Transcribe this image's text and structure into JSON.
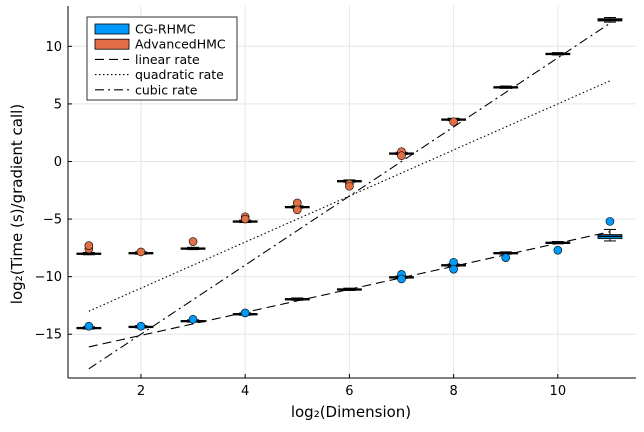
{
  "chart_data": {
    "type": "box",
    "xlabel": "log₂(Dimension)",
    "ylabel": "log₂(Time (s)/gradient call)",
    "xlim": [
      0.6,
      11.5
    ],
    "ylim": [
      -18.8,
      13.5
    ],
    "xticks": [
      2,
      4,
      6,
      8,
      10
    ],
    "yticks": [
      -15,
      -10,
      -5,
      0,
      5,
      10
    ],
    "grid": true,
    "legend_position": "top-left",
    "series": [
      {
        "name": "CG-RHMC",
        "color": "#009AFA",
        "x": [
          1,
          2,
          3,
          4,
          5,
          6,
          7,
          8,
          9,
          10,
          11
        ],
        "median": [
          -14.45,
          -14.35,
          -13.85,
          -13.25,
          -11.95,
          -11.1,
          -10.05,
          -9.0,
          -7.95,
          -7.05,
          -6.5
        ],
        "q1": [
          -14.5,
          -14.4,
          -13.9,
          -13.3,
          -12.0,
          -11.15,
          -10.1,
          -9.05,
          -8.0,
          -7.1,
          -6.7
        ],
        "q3": [
          -14.4,
          -14.3,
          -13.8,
          -13.2,
          -11.9,
          -11.05,
          -10.0,
          -8.95,
          -7.9,
          -7.0,
          -6.35
        ],
        "whisker_low": [
          -14.55,
          -14.45,
          -13.95,
          -13.35,
          -12.05,
          -11.2,
          -10.15,
          -9.1,
          -8.05,
          -7.15,
          -6.9
        ],
        "whisker_high": [
          -14.35,
          -14.25,
          -13.75,
          -13.15,
          -11.85,
          -11.0,
          -9.95,
          -8.9,
          -7.85,
          -6.95,
          -5.9
        ],
        "outliers": [
          [
            1,
            -14.3
          ],
          [
            2,
            -14.3
          ],
          [
            3,
            -13.7
          ],
          [
            4,
            -13.15
          ],
          [
            7,
            -9.8
          ],
          [
            7,
            -10.2
          ],
          [
            8,
            -8.75
          ],
          [
            8,
            -9.35
          ],
          [
            9,
            -8.35
          ],
          [
            10,
            -7.7
          ],
          [
            11,
            -5.2
          ]
        ]
      },
      {
        "name": "AdvancedHMC",
        "color": "#E26F46",
        "x": [
          1,
          2,
          3,
          4,
          5,
          6,
          7,
          8,
          9,
          10,
          11
        ],
        "median": [
          -8.0,
          -7.95,
          -7.55,
          -5.2,
          -3.95,
          -1.7,
          0.7,
          3.65,
          6.45,
          9.35,
          12.3
        ],
        "q1": [
          -8.05,
          -8.0,
          -7.6,
          -5.25,
          -4.0,
          -1.75,
          0.65,
          3.6,
          6.4,
          9.3,
          12.2
        ],
        "q3": [
          -7.95,
          -7.9,
          -7.5,
          -5.15,
          -3.9,
          -1.65,
          0.75,
          3.7,
          6.5,
          9.4,
          12.4
        ],
        "whisker_low": [
          -8.1,
          -8.05,
          -7.65,
          -5.3,
          -4.05,
          -1.8,
          0.6,
          3.55,
          6.35,
          9.25,
          12.1
        ],
        "whisker_high": [
          -7.9,
          -7.85,
          -7.45,
          -5.1,
          -3.85,
          -1.6,
          0.8,
          3.75,
          6.55,
          9.45,
          12.5
        ],
        "outliers": [
          [
            1,
            -7.6
          ],
          [
            1,
            -7.3
          ],
          [
            2,
            -7.85
          ],
          [
            3,
            -6.95
          ],
          [
            4,
            -4.8
          ],
          [
            4,
            -5.0
          ],
          [
            5,
            -3.6
          ],
          [
            5,
            -4.2
          ],
          [
            6,
            -1.95
          ],
          [
            6,
            -2.15
          ],
          [
            7,
            0.85
          ],
          [
            7,
            0.5
          ],
          [
            8,
            3.45
          ]
        ]
      }
    ],
    "reference_lines": [
      {
        "name": "linear rate",
        "style": "dashed",
        "points": [
          [
            1,
            -16.1
          ],
          [
            11,
            -6.1
          ]
        ]
      },
      {
        "name": "quadratic rate",
        "style": "dotted",
        "points": [
          [
            1,
            -13.0
          ],
          [
            11,
            7.0
          ]
        ]
      },
      {
        "name": "cubic rate",
        "style": "dashdot",
        "points": [
          [
            1,
            -18.0
          ],
          [
            11,
            12.0
          ]
        ]
      }
    ]
  }
}
